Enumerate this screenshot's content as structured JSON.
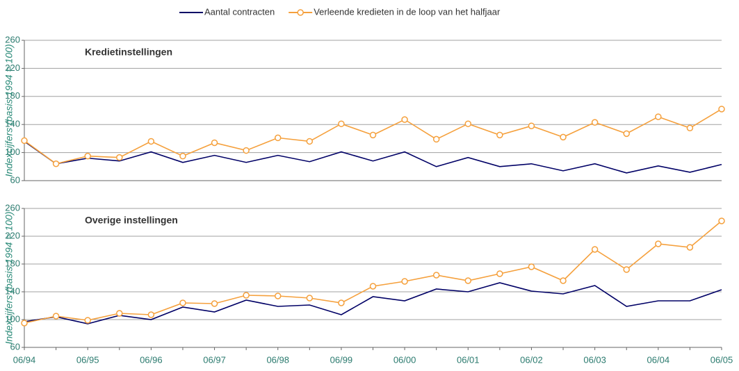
{
  "chart_data": [
    {
      "type": "line",
      "subtitle": "Kredietinstellingen",
      "y_label": "Indexcijfers (basis 1994 = 100)",
      "ylim": [
        60,
        260
      ],
      "yticks": [
        60,
        100,
        140,
        180,
        220,
        260
      ],
      "grid": true,
      "legend": "top",
      "series": [
        {
          "name": "Aantal contracten",
          "color": "#000066",
          "values": [
            116,
            84,
            92,
            88,
            101,
            86,
            96,
            86,
            96,
            87,
            101,
            88,
            101,
            80,
            93,
            80,
            84,
            74,
            84,
            71,
            81,
            72,
            83
          ]
        },
        {
          "name": "Verleende kredieten in de loop van het halfjaar",
          "color": "#f5a03c",
          "values": [
            117,
            84,
            95,
            93,
            116,
            95,
            114,
            103,
            121,
            116,
            141,
            125,
            147,
            119,
            141,
            125,
            138,
            122,
            143,
            127,
            151,
            135,
            162
          ]
        }
      ]
    },
    {
      "type": "line",
      "subtitle": "Overige instellingen",
      "y_label": "Indexcijfers (basis 1994 = 100)",
      "ylim": [
        60,
        260
      ],
      "yticks": [
        60,
        100,
        140,
        180,
        220,
        260
      ],
      "grid": true,
      "categories": [
        "06/94",
        null,
        "06/95",
        null,
        "06/96",
        null,
        "06/97",
        null,
        "06/98",
        null,
        "06/99",
        null,
        "06/00",
        null,
        "06/01",
        null,
        "06/02",
        null,
        "06/03",
        null,
        "06/04",
        null,
        "06/05"
      ],
      "series": [
        {
          "color": "#000066",
          "values": [
            97,
            104,
            94,
            106,
            100,
            118,
            111,
            128,
            119,
            121,
            107,
            133,
            127,
            144,
            140,
            153,
            141,
            137,
            149,
            119,
            127,
            127,
            143
          ]
        },
        {
          "color": "#f5a03c",
          "values": [
            95,
            105,
            99,
            109,
            107,
            124,
            123,
            135,
            134,
            131,
            124,
            148,
            155,
            164,
            156,
            166,
            176,
            156,
            201,
            172,
            209,
            204,
            242
          ]
        }
      ]
    }
  ]
}
